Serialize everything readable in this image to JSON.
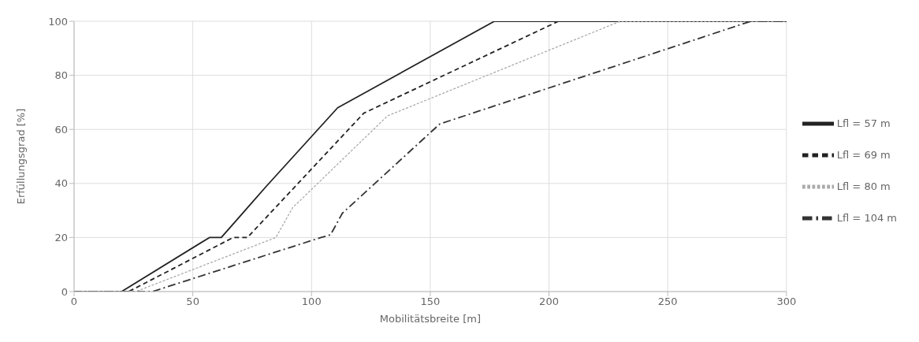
{
  "chart_data": {
    "type": "line",
    "xlabel": "Mobilitätsbreite [m]",
    "ylabel": "Erfüllungsgrad [%]",
    "xlim": [
      0,
      300
    ],
    "xticks": [
      0,
      50,
      100,
      150,
      200,
      250,
      300
    ],
    "ylim": [
      0,
      100
    ],
    "yticks": [
      0,
      20,
      40,
      60,
      80,
      100
    ],
    "grid": true,
    "legend": "right",
    "marker": "none",
    "series": [
      {
        "name": "Lfl = 57 m",
        "color": "#222222",
        "line_style": "solid",
        "x": [
          0,
          20,
          57,
          62,
          72,
          81,
          111,
          177,
          300
        ],
        "values": [
          0,
          0,
          20,
          20,
          30,
          39,
          68,
          100,
          100
        ]
      },
      {
        "name": "Lfl = 69 m",
        "color": "#222222",
        "line_style": "dashed",
        "x": [
          0,
          23,
          67,
          73,
          122,
          204,
          300
        ],
        "values": [
          0,
          0,
          20,
          20,
          66,
          100,
          100
        ]
      },
      {
        "name": "Lfl = 80 m",
        "color": "#aaaaaa",
        "line_style": "dotted",
        "x": [
          0,
          26,
          85,
          92,
          132,
          230,
          300
        ],
        "values": [
          0,
          0,
          20,
          31,
          65,
          100,
          100
        ]
      },
      {
        "name": "Lfl = 104 m",
        "color": "#333333",
        "line_style": "dashdot",
        "x": [
          0,
          33,
          104,
          108,
          113,
          154,
          285,
          300
        ],
        "values": [
          0,
          0,
          20,
          21,
          29,
          62,
          100,
          100
        ]
      }
    ]
  }
}
